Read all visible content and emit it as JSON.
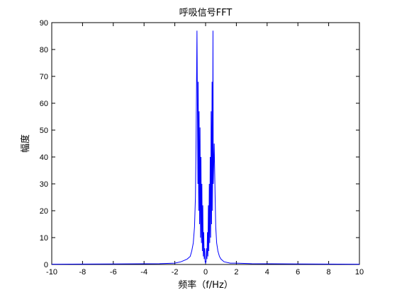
{
  "chart_data": {
    "type": "line",
    "title": "呼吸信号FFT",
    "xlabel": "频率（f/Hz）",
    "ylabel": "幅度",
    "xlim": [
      -10,
      10
    ],
    "ylim": [
      0,
      90
    ],
    "xticks": [
      -10,
      -8,
      -6,
      -4,
      -2,
      0,
      2,
      4,
      6,
      8,
      10
    ],
    "yticks": [
      0,
      10,
      20,
      30,
      40,
      50,
      60,
      70,
      80,
      90
    ],
    "grid": false,
    "line_color": "#0000ff",
    "series": [
      {
        "x": [
          -10,
          -6,
          -3,
          -2,
          -1.6,
          -1.2,
          -1.0,
          -0.9,
          -0.8,
          -0.72,
          -0.66,
          -0.62,
          -0.56,
          -0.5,
          -0.48,
          -0.45,
          -0.42,
          -0.39,
          -0.36,
          -0.33,
          -0.3,
          -0.27,
          -0.24,
          -0.21,
          -0.18,
          -0.15,
          -0.12,
          -0.09,
          -0.06,
          -0.03,
          0,
          0.03,
          0.06,
          0.09,
          0.12,
          0.15,
          0.18,
          0.21,
          0.24,
          0.27,
          0.3,
          0.33,
          0.36,
          0.39,
          0.42,
          0.45,
          0.48,
          0.5,
          0.56,
          0.62,
          0.66,
          0.72,
          0.8,
          0.9,
          1.0,
          1.2,
          1.6,
          2,
          3,
          6,
          10
        ],
        "y": [
          0.1,
          0.2,
          0.3,
          0.5,
          1,
          2,
          3,
          5,
          8,
          14,
          25,
          45,
          87,
          30,
          68,
          20,
          57,
          15,
          51,
          10,
          40,
          8,
          30,
          5,
          22,
          3,
          12,
          2,
          6,
          1,
          0.5,
          1,
          6,
          2,
          12,
          3,
          22,
          5,
          30,
          8,
          40,
          10,
          57,
          15,
          68,
          20,
          87,
          30,
          45,
          25,
          14,
          8,
          5,
          3,
          2,
          1,
          0.5,
          0.5,
          0.3,
          0.2,
          0.1
        ]
      }
    ]
  }
}
